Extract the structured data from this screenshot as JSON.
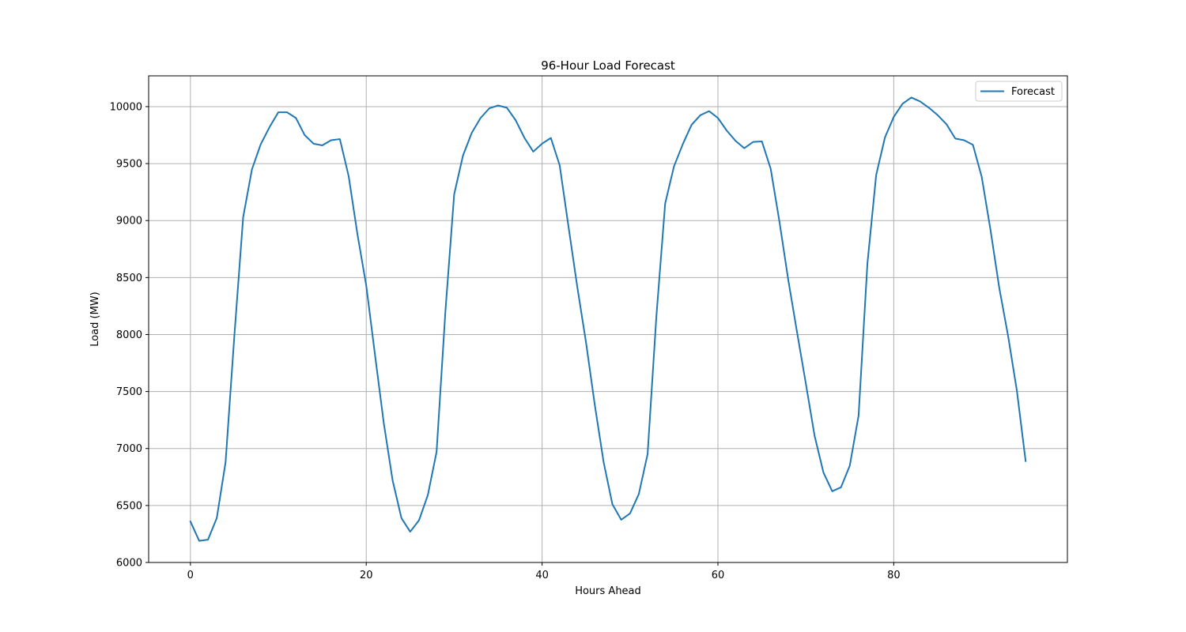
{
  "chart_data": {
    "type": "line",
    "title": "96-Hour Load Forecast",
    "xlabel": "Hours Ahead",
    "ylabel": "Load (MW)",
    "xlim": [
      -4.75,
      99.75
    ],
    "ylim": [
      6000,
      10270
    ],
    "xticks": [
      0,
      20,
      40,
      60,
      80
    ],
    "yticks": [
      6000,
      6500,
      7000,
      7500,
      8000,
      8500,
      9000,
      9500,
      10000
    ],
    "grid": true,
    "legend_position": "top-right",
    "colors": {
      "forecast": "#1f77b4"
    },
    "series": [
      {
        "name": "Forecast",
        "x": [
          0,
          1,
          2,
          3,
          4,
          5,
          6,
          7,
          8,
          9,
          10,
          11,
          12,
          13,
          14,
          15,
          16,
          17,
          18,
          19,
          20,
          21,
          22,
          23,
          24,
          25,
          26,
          27,
          28,
          29,
          30,
          31,
          32,
          33,
          34,
          35,
          36,
          37,
          38,
          39,
          40,
          41,
          42,
          43,
          44,
          45,
          46,
          47,
          48,
          49,
          50,
          51,
          52,
          53,
          54,
          55,
          56,
          57,
          58,
          59,
          60,
          61,
          62,
          63,
          64,
          65,
          66,
          67,
          68,
          69,
          70,
          71,
          72,
          73,
          74,
          75,
          76,
          77,
          78,
          79,
          80,
          81,
          82,
          83,
          84,
          85,
          86,
          87,
          88,
          89,
          90,
          91,
          92,
          93,
          94,
          95
        ],
        "values": [
          6360,
          6190,
          6200,
          6390,
          6880,
          7990,
          9030,
          9450,
          9670,
          9820,
          9950,
          9950,
          9900,
          9750,
          9675,
          9660,
          9705,
          9715,
          9390,
          8880,
          8430,
          7820,
          7220,
          6720,
          6390,
          6270,
          6370,
          6590,
          6970,
          8200,
          9230,
          9570,
          9770,
          9900,
          9985,
          10010,
          9990,
          9880,
          9725,
          9605,
          9675,
          9725,
          9485,
          8950,
          8420,
          7930,
          7380,
          6880,
          6510,
          6375,
          6430,
          6600,
          6950,
          8160,
          9150,
          9475,
          9670,
          9840,
          9925,
          9960,
          9900,
          9790,
          9700,
          9635,
          9690,
          9695,
          9455,
          8990,
          8480,
          8020,
          7570,
          7110,
          6790,
          6625,
          6660,
          6850,
          7290,
          8620,
          9400,
          9730,
          9910,
          10025,
          10080,
          10045,
          9990,
          9925,
          9845,
          9720,
          9705,
          9665,
          9385,
          8920,
          8410,
          7990,
          7510,
          6890
        ]
      }
    ]
  }
}
